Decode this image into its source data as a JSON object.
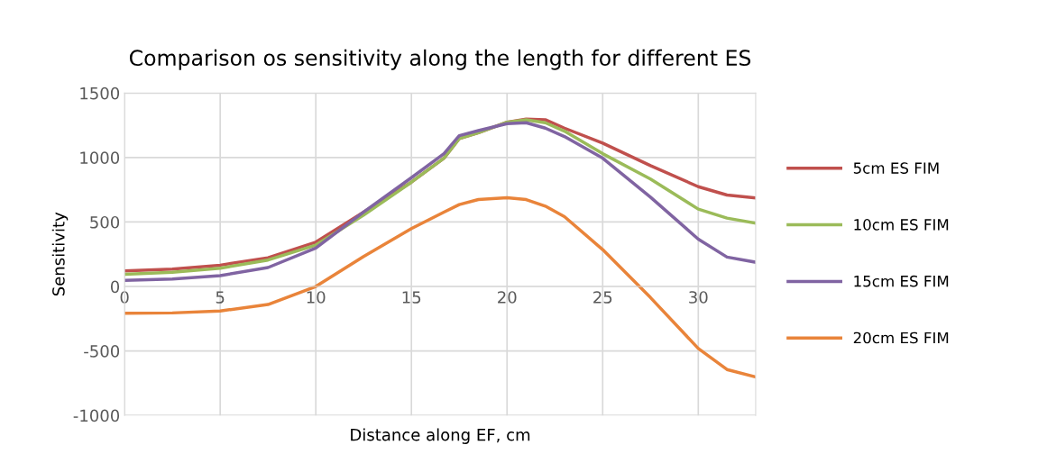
{
  "chart_data": {
    "type": "line",
    "title": "Comparison os sensitivity along the length for different ES",
    "xlabel": "Distance along EF, cm",
    "ylabel": "Sensitivity",
    "x": [
      0,
      2.5,
      5,
      7.5,
      10,
      12.5,
      15,
      16.7,
      17.5,
      18.5,
      20,
      21,
      22,
      23,
      25,
      27.5,
      30,
      31.5,
      33
    ],
    "series": [
      {
        "name": "5cm ES FIM",
        "color": "#c0504d",
        "values": [
          121,
          135,
          165,
          223,
          344,
          577,
          809,
          995,
          1147,
          1193,
          1274,
          1298,
          1293,
          1228,
          1112,
          937,
          774,
          709,
          686
        ]
      },
      {
        "name": "10cm ES FIM",
        "color": "#9bbb59",
        "values": [
          95,
          110,
          142,
          205,
          321,
          553,
          809,
          995,
          1147,
          1193,
          1274,
          1293,
          1270,
          1205,
          1030,
          833,
          600,
          530,
          491
        ]
      },
      {
        "name": "15cm ES FIM",
        "color": "#8064a2",
        "values": [
          47,
          58,
          84,
          147,
          298,
          577,
          844,
          1030,
          1170,
          1209,
          1263,
          1270,
          1228,
          1163,
          995,
          693,
          367,
          228,
          188
        ]
      },
      {
        "name": "20cm ES FIM",
        "color": "#e9843a",
        "values": [
          -207,
          -205,
          -190,
          -140,
          0,
          233,
          449,
          577,
          635,
          674,
          688,
          674,
          623,
          542,
          286,
          -86,
          -481,
          -644,
          -702
        ]
      }
    ],
    "xlim": [
      0,
      33
    ],
    "xticks": [
      0,
      5,
      10,
      15,
      20,
      25,
      30
    ],
    "ylim": [
      -1000,
      1500
    ],
    "yticks": [
      -1000,
      -500,
      0,
      500,
      1000,
      1500
    ],
    "grid": true,
    "legend": "right",
    "marker": "none",
    "line_style": "solid"
  }
}
